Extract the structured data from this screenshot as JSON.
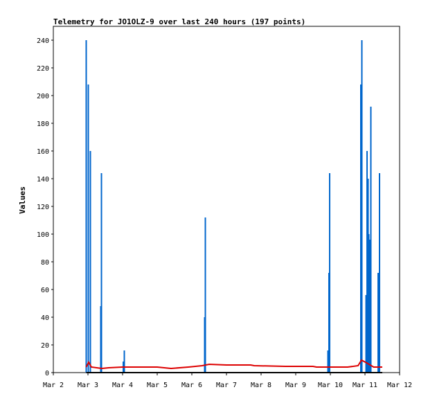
{
  "chart_data": {
    "type": "line",
    "title": "Telemetry for JO1OLZ-9 over last 240 hours (197 points)",
    "xlabel": "",
    "ylabel": "Values",
    "x_tick_labels": [
      "Mar 2",
      "Mar 3",
      "Mar 4",
      "Mar 5",
      "Mar 6",
      "Mar 7",
      "Mar 8",
      "Mar 9",
      "Mar 10",
      "Mar 11",
      "Mar 12"
    ],
    "x_range_days": [
      2,
      12
    ],
    "ylim": [
      0,
      250
    ],
    "y_ticks": [
      0,
      20,
      40,
      60,
      80,
      100,
      120,
      140,
      160,
      180,
      200,
      220,
      240
    ],
    "grid": false,
    "legend": "none",
    "series": [
      {
        "color": "#0066cc",
        "style": "spikes",
        "points": [
          {
            "x": 2.95,
            "y": 240
          },
          {
            "x": 3.01,
            "y": 208
          },
          {
            "x": 3.07,
            "y": 160
          },
          {
            "x": 3.37,
            "y": 48
          },
          {
            "x": 3.39,
            "y": 144
          },
          {
            "x": 4.02,
            "y": 8
          },
          {
            "x": 4.05,
            "y": 16
          },
          {
            "x": 6.37,
            "y": 40
          },
          {
            "x": 6.39,
            "y": 112
          },
          {
            "x": 9.93,
            "y": 16
          },
          {
            "x": 9.96,
            "y": 72
          },
          {
            "x": 9.98,
            "y": 144
          },
          {
            "x": 10.88,
            "y": 208
          },
          {
            "x": 10.91,
            "y": 240
          },
          {
            "x": 11.03,
            "y": 56
          },
          {
            "x": 11.06,
            "y": 160
          },
          {
            "x": 11.09,
            "y": 140
          },
          {
            "x": 11.11,
            "y": 100
          },
          {
            "x": 11.14,
            "y": 96
          },
          {
            "x": 11.17,
            "y": 192
          },
          {
            "x": 11.38,
            "y": 72
          },
          {
            "x": 11.42,
            "y": 144
          }
        ]
      },
      {
        "color": "#dd0000",
        "style": "line",
        "points": [
          {
            "x": 2.95,
            "y": 4
          },
          {
            "x": 3.02,
            "y": 7.5
          },
          {
            "x": 3.1,
            "y": 4
          },
          {
            "x": 3.4,
            "y": 3
          },
          {
            "x": 3.6,
            "y": 3.5
          },
          {
            "x": 4.0,
            "y": 4
          },
          {
            "x": 5.0,
            "y": 4
          },
          {
            "x": 5.4,
            "y": 3
          },
          {
            "x": 5.9,
            "y": 4
          },
          {
            "x": 6.3,
            "y": 5
          },
          {
            "x": 6.5,
            "y": 6
          },
          {
            "x": 7.0,
            "y": 5.5
          },
          {
            "x": 7.7,
            "y": 5.5
          },
          {
            "x": 7.8,
            "y": 5
          },
          {
            "x": 8.7,
            "y": 4.5
          },
          {
            "x": 9.5,
            "y": 4.5
          },
          {
            "x": 9.6,
            "y": 4
          },
          {
            "x": 10.5,
            "y": 4
          },
          {
            "x": 10.8,
            "y": 5
          },
          {
            "x": 10.9,
            "y": 9
          },
          {
            "x": 11.05,
            "y": 7
          },
          {
            "x": 11.25,
            "y": 4
          },
          {
            "x": 11.5,
            "y": 4
          }
        ]
      },
      {
        "color": "#000000",
        "style": "line",
        "points": [
          {
            "x": 2.95,
            "y": 0
          },
          {
            "x": 11.5,
            "y": 0
          }
        ]
      }
    ]
  }
}
